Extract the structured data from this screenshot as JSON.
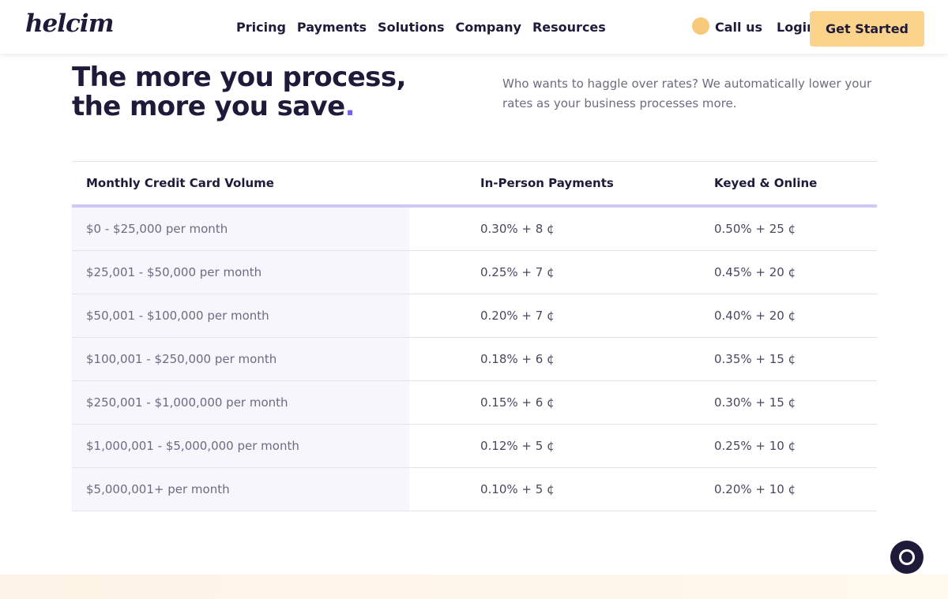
{
  "nav": {
    "logo": "helcim",
    "links": [
      "Pricing",
      "Payments",
      "Solutions",
      "Company",
      "Resources"
    ],
    "call": "Call us",
    "login": "Login",
    "cta": "Get Started"
  },
  "hero": {
    "title": "The more you process, the more you save",
    "title_end": ".",
    "description": "Who wants to haggle over rates? We automatically lower your rates as your business processes more."
  },
  "table": {
    "headers": [
      "Monthly Credit Card Volume",
      "In-Person Payments",
      "Keyed & Online"
    ],
    "rows": [
      [
        "$0 - $25,000 per month",
        "0.30% + 8 ¢",
        "0.50% + 25 ¢"
      ],
      [
        "$25,001 - $50,000 per month",
        "0.25% + 7 ¢",
        "0.45% + 20 ¢"
      ],
      [
        "$50,001 - $100,000 per month",
        "0.20% + 7 ¢",
        "0.40% + 20 ¢"
      ],
      [
        "$100,001 - $250,000 per month",
        "0.18% + 6 ¢",
        "0.35% + 15 ¢"
      ],
      [
        "$250,001 - $1,000,000 per month",
        "0.15% + 6 ¢",
        "0.30% + 15 ¢"
      ],
      [
        "$1,000,001 - $5,000,000 per month",
        "0.12% + 5 ¢",
        "0.25% + 10 ¢"
      ],
      [
        "$5,000,001+ per month",
        "0.10% + 5 ¢",
        "0.20% + 10 ¢"
      ]
    ]
  }
}
